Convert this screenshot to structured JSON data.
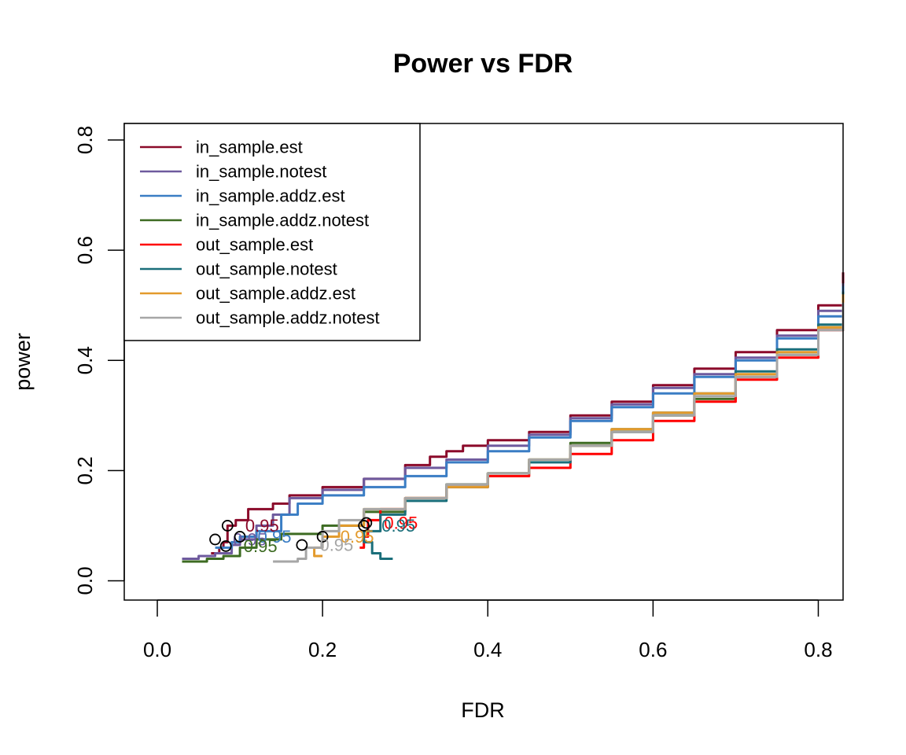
{
  "chart_data": {
    "type": "line",
    "title": "Power vs FDR",
    "xlabel": "FDR",
    "ylabel": "power",
    "xlim": [
      -0.04,
      0.83
    ],
    "ylim": [
      -0.035,
      0.83
    ],
    "x_ticks": [
      0.0,
      0.2,
      0.4,
      0.6,
      0.8
    ],
    "x_tick_labels": [
      "0.0",
      "0.2",
      "0.4",
      "0.6",
      "0.8"
    ],
    "y_ticks": [
      0.0,
      0.2,
      0.4,
      0.6,
      0.8
    ],
    "y_tick_labels": [
      "0.0",
      "0.2",
      "0.4",
      "0.6",
      "0.8"
    ],
    "legend_position": "top-left",
    "series": [
      {
        "name": "in_sample.est",
        "color": "#8B0A2A",
        "points": [
          [
            0.065,
            0.05
          ],
          [
            0.075,
            0.06
          ],
          [
            0.08,
            0.07
          ],
          [
            0.085,
            0.1
          ],
          [
            0.095,
            0.11
          ],
          [
            0.11,
            0.13
          ],
          [
            0.14,
            0.14
          ],
          [
            0.16,
            0.155
          ],
          [
            0.2,
            0.17
          ],
          [
            0.25,
            0.185
          ],
          [
            0.3,
            0.21
          ],
          [
            0.33,
            0.225
          ],
          [
            0.35,
            0.235
          ],
          [
            0.37,
            0.245
          ],
          [
            0.4,
            0.255
          ],
          [
            0.45,
            0.27
          ],
          [
            0.5,
            0.3
          ],
          [
            0.55,
            0.325
          ],
          [
            0.6,
            0.355
          ],
          [
            0.65,
            0.385
          ],
          [
            0.7,
            0.415
          ],
          [
            0.75,
            0.455
          ],
          [
            0.8,
            0.5
          ],
          [
            0.83,
            0.56
          ]
        ],
        "marker": [
          0.085,
          0.1
        ],
        "marker_label": "0.95"
      },
      {
        "name": "in_sample.notest",
        "color": "#6E5A9E",
        "points": [
          [
            0.03,
            0.04
          ],
          [
            0.05,
            0.045
          ],
          [
            0.07,
            0.05
          ],
          [
            0.09,
            0.065
          ],
          [
            0.1,
            0.075
          ],
          [
            0.12,
            0.1
          ],
          [
            0.14,
            0.12
          ],
          [
            0.16,
            0.15
          ],
          [
            0.2,
            0.165
          ],
          [
            0.25,
            0.185
          ],
          [
            0.3,
            0.205
          ],
          [
            0.35,
            0.22
          ],
          [
            0.4,
            0.245
          ],
          [
            0.45,
            0.265
          ],
          [
            0.5,
            0.295
          ],
          [
            0.55,
            0.32
          ],
          [
            0.6,
            0.35
          ],
          [
            0.65,
            0.375
          ],
          [
            0.7,
            0.405
          ],
          [
            0.75,
            0.445
          ],
          [
            0.8,
            0.49
          ],
          [
            0.83,
            0.54
          ]
        ],
        "marker": [
          0.07,
          0.075
        ],
        "marker_label": "0.95"
      },
      {
        "name": "in_sample.addz.est",
        "color": "#3A7DC4",
        "points": [
          [
            0.07,
            0.06
          ],
          [
            0.09,
            0.07
          ],
          [
            0.1,
            0.08
          ],
          [
            0.12,
            0.09
          ],
          [
            0.15,
            0.12
          ],
          [
            0.17,
            0.14
          ],
          [
            0.2,
            0.155
          ],
          [
            0.25,
            0.17
          ],
          [
            0.3,
            0.19
          ],
          [
            0.35,
            0.215
          ],
          [
            0.4,
            0.235
          ],
          [
            0.45,
            0.26
          ],
          [
            0.5,
            0.29
          ],
          [
            0.55,
            0.315
          ],
          [
            0.6,
            0.34
          ],
          [
            0.65,
            0.37
          ],
          [
            0.7,
            0.4
          ],
          [
            0.75,
            0.44
          ],
          [
            0.8,
            0.48
          ],
          [
            0.83,
            0.535
          ]
        ],
        "marker": [
          0.1,
          0.08
        ],
        "marker_label": "0.95"
      },
      {
        "name": "in_sample.addz.notest",
        "color": "#3D6B22",
        "points": [
          [
            0.03,
            0.035
          ],
          [
            0.06,
            0.04
          ],
          [
            0.08,
            0.045
          ],
          [
            0.1,
            0.06
          ],
          [
            0.12,
            0.075
          ],
          [
            0.15,
            0.085
          ],
          [
            0.2,
            0.1
          ],
          [
            0.25,
            0.125
          ],
          [
            0.3,
            0.15
          ],
          [
            0.35,
            0.175
          ],
          [
            0.4,
            0.195
          ],
          [
            0.45,
            0.22
          ],
          [
            0.5,
            0.25
          ],
          [
            0.55,
            0.275
          ],
          [
            0.6,
            0.3
          ],
          [
            0.65,
            0.33
          ],
          [
            0.7,
            0.37
          ],
          [
            0.75,
            0.41
          ],
          [
            0.8,
            0.46
          ],
          [
            0.83,
            0.52
          ]
        ],
        "marker": [
          0.083,
          0.063
        ],
        "marker_label": "0.95"
      },
      {
        "name": "out_sample.est",
        "color": "#FF0000",
        "points": [
          [
            0.245,
            0.06
          ],
          [
            0.25,
            0.08
          ],
          [
            0.255,
            0.11
          ],
          [
            0.27,
            0.13
          ],
          [
            0.3,
            0.15
          ],
          [
            0.35,
            0.17
          ],
          [
            0.4,
            0.19
          ],
          [
            0.45,
            0.205
          ],
          [
            0.5,
            0.23
          ],
          [
            0.55,
            0.255
          ],
          [
            0.6,
            0.29
          ],
          [
            0.65,
            0.325
          ],
          [
            0.7,
            0.365
          ],
          [
            0.75,
            0.405
          ],
          [
            0.8,
            0.455
          ],
          [
            0.83,
            0.52
          ]
        ],
        "marker": [
          0.253,
          0.105
        ],
        "marker_label": "0.95"
      },
      {
        "name": "out_sample.notest",
        "color": "#1A6E7A",
        "points": [
          [
            0.285,
            0.04
          ],
          [
            0.27,
            0.05
          ],
          [
            0.26,
            0.07
          ],
          [
            0.25,
            0.09
          ],
          [
            0.27,
            0.12
          ],
          [
            0.3,
            0.145
          ],
          [
            0.35,
            0.17
          ],
          [
            0.4,
            0.195
          ],
          [
            0.45,
            0.215
          ],
          [
            0.5,
            0.245
          ],
          [
            0.55,
            0.27
          ],
          [
            0.6,
            0.305
          ],
          [
            0.65,
            0.34
          ],
          [
            0.7,
            0.38
          ],
          [
            0.75,
            0.42
          ],
          [
            0.8,
            0.465
          ],
          [
            0.83,
            0.525
          ]
        ],
        "marker": [
          0.25,
          0.1
        ],
        "marker_label": "0.95"
      },
      {
        "name": "out_sample.addz.est",
        "color": "#E39A2C",
        "points": [
          [
            0.2,
            0.045
          ],
          [
            0.19,
            0.06
          ],
          [
            0.2,
            0.08
          ],
          [
            0.22,
            0.1
          ],
          [
            0.25,
            0.13
          ],
          [
            0.3,
            0.15
          ],
          [
            0.35,
            0.17
          ],
          [
            0.4,
            0.195
          ],
          [
            0.45,
            0.22
          ],
          [
            0.5,
            0.245
          ],
          [
            0.55,
            0.275
          ],
          [
            0.6,
            0.305
          ],
          [
            0.65,
            0.34
          ],
          [
            0.7,
            0.375
          ],
          [
            0.75,
            0.415
          ],
          [
            0.8,
            0.46
          ],
          [
            0.83,
            0.52
          ]
        ],
        "marker": [
          0.2,
          0.08
        ],
        "marker_label": "0.95"
      },
      {
        "name": "out_sample.addz.notest",
        "color": "#A6A6A6",
        "points": [
          [
            0.14,
            0.035
          ],
          [
            0.17,
            0.04
          ],
          [
            0.18,
            0.06
          ],
          [
            0.2,
            0.09
          ],
          [
            0.22,
            0.11
          ],
          [
            0.25,
            0.13
          ],
          [
            0.3,
            0.15
          ],
          [
            0.35,
            0.175
          ],
          [
            0.4,
            0.195
          ],
          [
            0.45,
            0.22
          ],
          [
            0.5,
            0.245
          ],
          [
            0.55,
            0.27
          ],
          [
            0.6,
            0.3
          ],
          [
            0.65,
            0.335
          ],
          [
            0.7,
            0.37
          ],
          [
            0.75,
            0.41
          ],
          [
            0.8,
            0.455
          ],
          [
            0.83,
            0.505
          ]
        ],
        "marker": [
          0.175,
          0.065
        ],
        "marker_label": "0.95"
      }
    ]
  }
}
